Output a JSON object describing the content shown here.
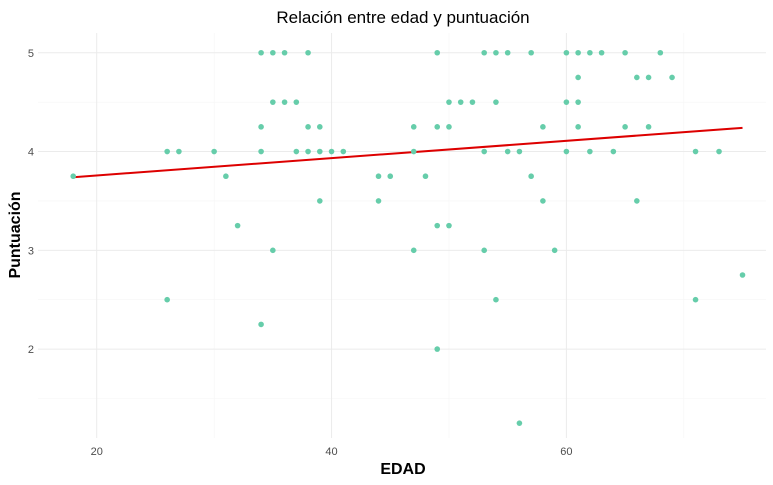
{
  "chart_data": {
    "type": "scatter",
    "title": "Relación entre edad y puntuación",
    "xlabel": "EDAD",
    "ylabel": "Puntuación",
    "xlim": [
      15,
      77
    ],
    "ylim": [
      1.1,
      5.2
    ],
    "x_ticks": [
      20,
      40,
      60
    ],
    "y_ticks": [
      2,
      3,
      4,
      5
    ],
    "grid": true,
    "point_color": "#66cdaa",
    "trend_color": "#dd0000",
    "points": [
      {
        "x": 18,
        "y": 3.75
      },
      {
        "x": 26,
        "y": 4.0
      },
      {
        "x": 26,
        "y": 2.5
      },
      {
        "x": 27,
        "y": 4.0
      },
      {
        "x": 30,
        "y": 4.0
      },
      {
        "x": 31,
        "y": 3.75
      },
      {
        "x": 32,
        "y": 3.25
      },
      {
        "x": 34,
        "y": 5.0
      },
      {
        "x": 34,
        "y": 4.25
      },
      {
        "x": 34,
        "y": 4.0
      },
      {
        "x": 34,
        "y": 2.25
      },
      {
        "x": 35,
        "y": 5.0
      },
      {
        "x": 35,
        "y": 4.5
      },
      {
        "x": 35,
        "y": 3.0
      },
      {
        "x": 36,
        "y": 5.0
      },
      {
        "x": 36,
        "y": 4.5
      },
      {
        "x": 37,
        "y": 4.5
      },
      {
        "x": 37,
        "y": 4.0
      },
      {
        "x": 38,
        "y": 5.0
      },
      {
        "x": 38,
        "y": 4.25
      },
      {
        "x": 38,
        "y": 4.0
      },
      {
        "x": 39,
        "y": 4.25
      },
      {
        "x": 39,
        "y": 4.0
      },
      {
        "x": 39,
        "y": 3.5
      },
      {
        "x": 40,
        "y": 4.0
      },
      {
        "x": 41,
        "y": 4.0
      },
      {
        "x": 44,
        "y": 3.75
      },
      {
        "x": 44,
        "y": 3.5
      },
      {
        "x": 45,
        "y": 3.75
      },
      {
        "x": 47,
        "y": 4.25
      },
      {
        "x": 47,
        "y": 4.0
      },
      {
        "x": 47,
        "y": 3.0
      },
      {
        "x": 48,
        "y": 3.75
      },
      {
        "x": 49,
        "y": 5.0
      },
      {
        "x": 49,
        "y": 4.25
      },
      {
        "x": 49,
        "y": 3.25
      },
      {
        "x": 49,
        "y": 2.0
      },
      {
        "x": 50,
        "y": 4.5
      },
      {
        "x": 50,
        "y": 4.25
      },
      {
        "x": 50,
        "y": 3.25
      },
      {
        "x": 51,
        "y": 4.5
      },
      {
        "x": 52,
        "y": 4.5
      },
      {
        "x": 53,
        "y": 5.0
      },
      {
        "x": 53,
        "y": 4.0
      },
      {
        "x": 53,
        "y": 3.0
      },
      {
        "x": 54,
        "y": 5.0
      },
      {
        "x": 54,
        "y": 4.5
      },
      {
        "x": 54,
        "y": 2.5
      },
      {
        "x": 55,
        "y": 5.0
      },
      {
        "x": 55,
        "y": 4.0
      },
      {
        "x": 56,
        "y": 4.0
      },
      {
        "x": 56,
        "y": 1.25
      },
      {
        "x": 57,
        "y": 5.0
      },
      {
        "x": 57,
        "y": 3.75
      },
      {
        "x": 58,
        "y": 4.25
      },
      {
        "x": 58,
        "y": 3.5
      },
      {
        "x": 59,
        "y": 3.0
      },
      {
        "x": 60,
        "y": 5.0
      },
      {
        "x": 60,
        "y": 4.5
      },
      {
        "x": 60,
        "y": 4.0
      },
      {
        "x": 61,
        "y": 5.0
      },
      {
        "x": 61,
        "y": 4.75
      },
      {
        "x": 61,
        "y": 4.5
      },
      {
        "x": 61,
        "y": 4.25
      },
      {
        "x": 62,
        "y": 5.0
      },
      {
        "x": 62,
        "y": 4.0
      },
      {
        "x": 63,
        "y": 5.0
      },
      {
        "x": 64,
        "y": 4.0
      },
      {
        "x": 65,
        "y": 5.0
      },
      {
        "x": 65,
        "y": 4.25
      },
      {
        "x": 66,
        "y": 4.75
      },
      {
        "x": 66,
        "y": 3.5
      },
      {
        "x": 67,
        "y": 4.75
      },
      {
        "x": 67,
        "y": 4.25
      },
      {
        "x": 68,
        "y": 5.0
      },
      {
        "x": 69,
        "y": 4.75
      },
      {
        "x": 71,
        "y": 4.0
      },
      {
        "x": 71,
        "y": 2.5
      },
      {
        "x": 73,
        "y": 4.0
      },
      {
        "x": 75,
        "y": 2.75
      }
    ],
    "trend_line": {
      "x": [
        18,
        75
      ],
      "y": [
        3.74,
        4.24
      ]
    }
  }
}
